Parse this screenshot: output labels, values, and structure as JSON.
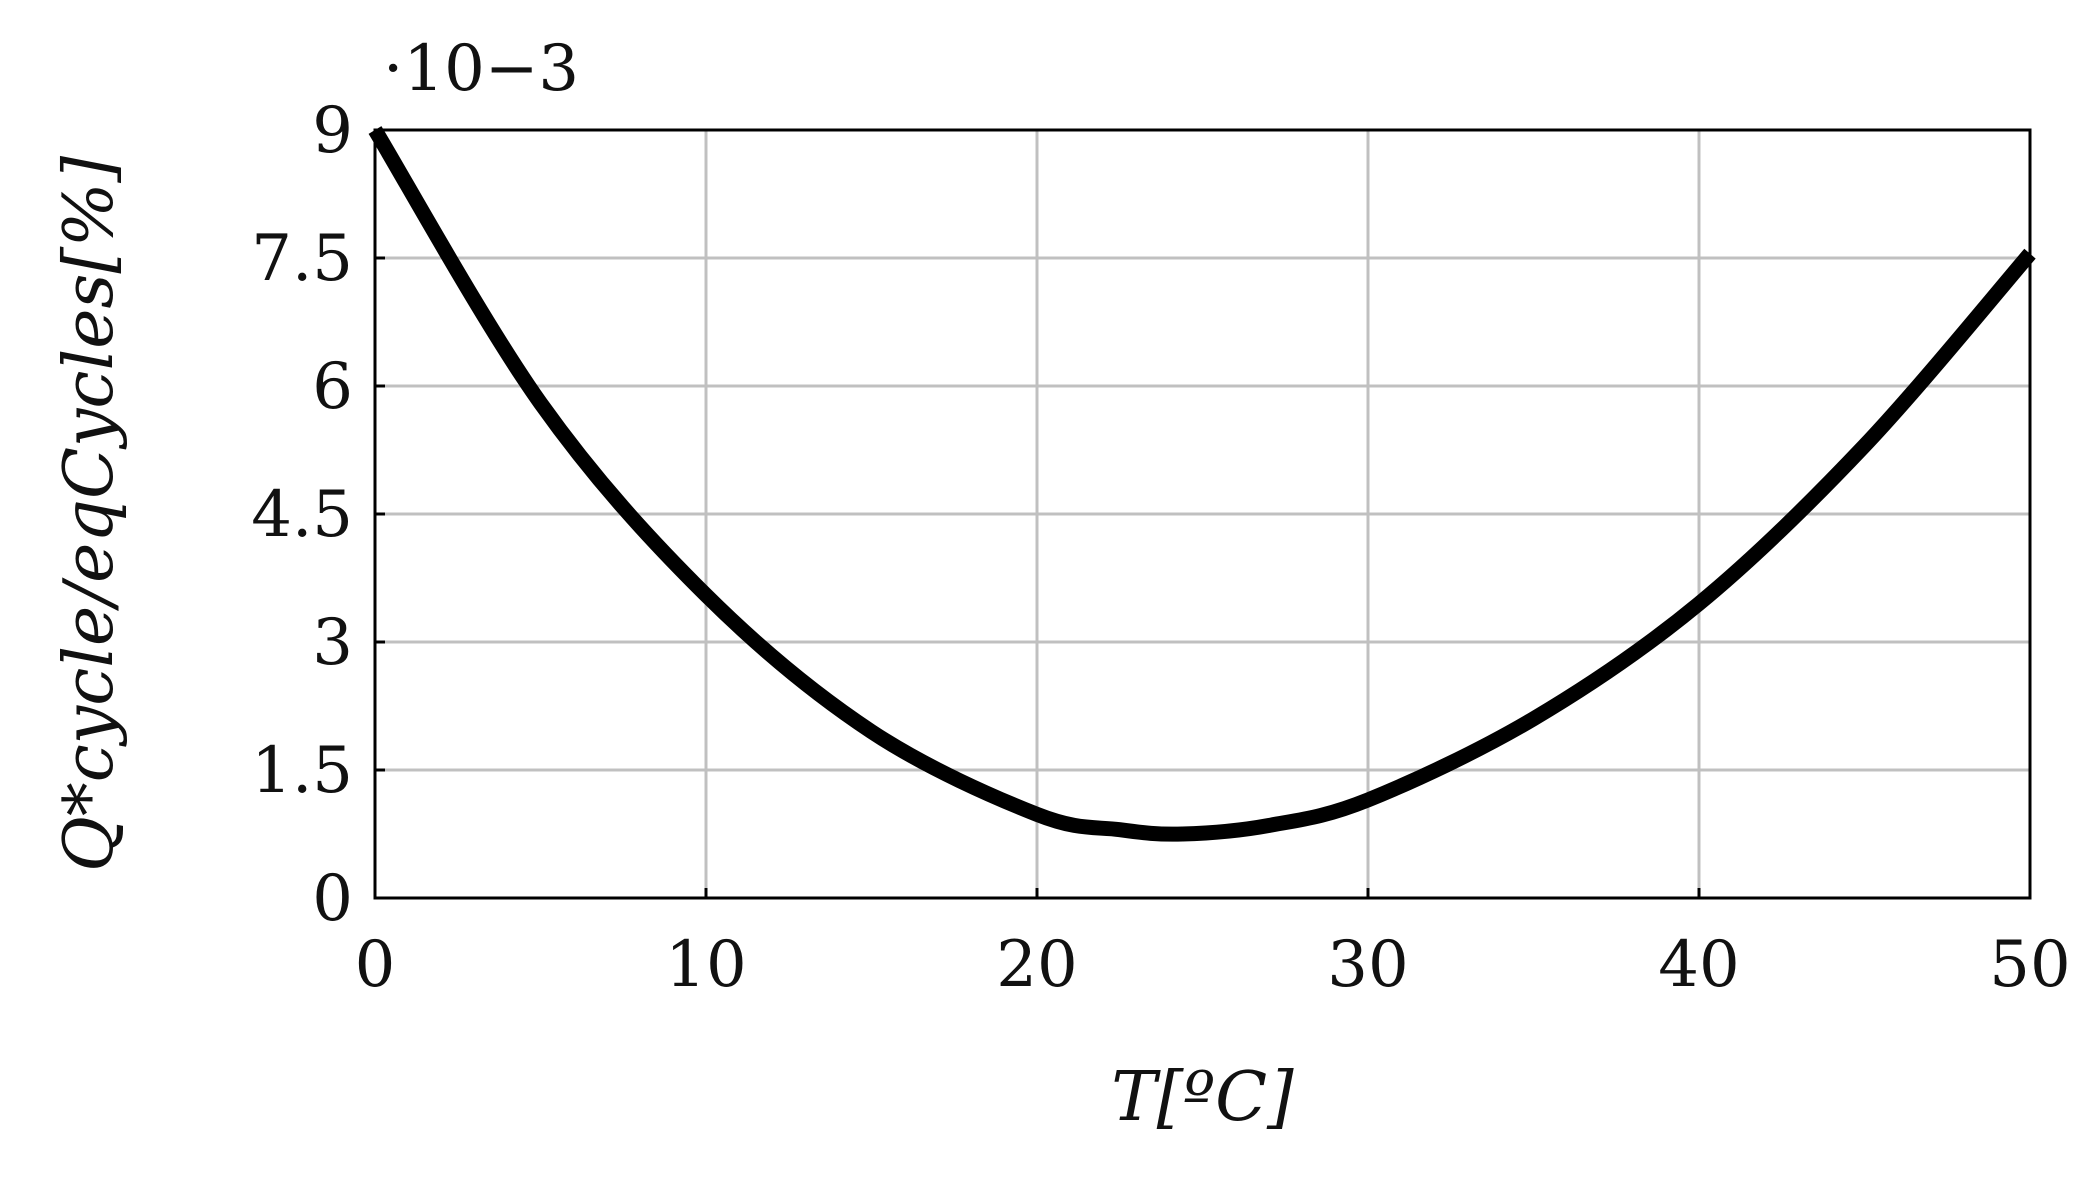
{
  "chart_data": {
    "type": "line",
    "title": "",
    "xlabel": "T[ºC]",
    "ylabel": "Q*cycle/eqCycles[%]",
    "y_multiplier_label": "·10−3",
    "xlim": [
      0,
      50
    ],
    "ylim": [
      0,
      9
    ],
    "xticks": [
      0,
      10,
      20,
      30,
      40,
      50
    ],
    "xtick_labels": [
      "0",
      "10",
      "20",
      "30",
      "40",
      "50"
    ],
    "yticks": [
      0,
      1.5,
      3,
      4.5,
      6,
      7.5,
      9
    ],
    "ytick_labels": [
      "0",
      "1.5",
      "3",
      "4.5",
      "6",
      "7.5",
      "9"
    ],
    "grid": true,
    "line_color": "#000000",
    "grid_color": "#c0c0c0",
    "series": [
      {
        "x": [
          0,
          5,
          10,
          15,
          20,
          22.5,
          24.4,
          27,
          30,
          35,
          40,
          45,
          50
        ],
        "y": [
          9.0,
          5.8,
          3.55,
          1.95,
          0.98,
          0.8,
          0.75,
          0.85,
          1.15,
          2.1,
          3.45,
          5.3,
          7.55
        ]
      }
    ]
  }
}
